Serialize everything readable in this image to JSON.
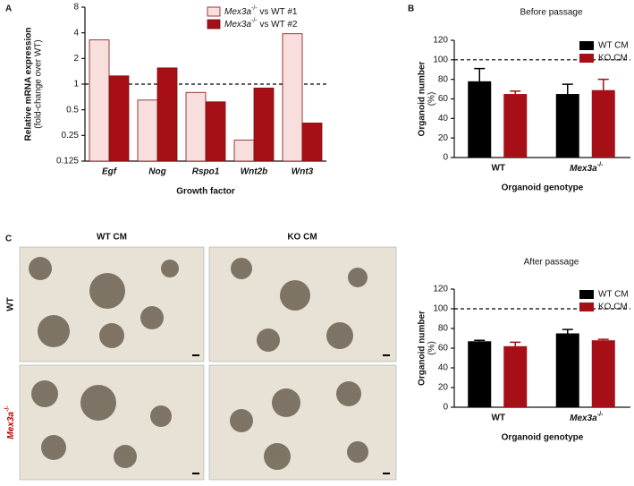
{
  "panels": [
    "A",
    "B",
    "C"
  ],
  "micrographs": {
    "columns": [
      "WT CM",
      "KO CM"
    ],
    "rows": [
      "WT",
      "Mex3a-/-"
    ]
  },
  "chart_data": [
    {
      "type": "bar",
      "categories": [
        "Egf",
        "Nog",
        "Rspo1",
        "Wnt2b",
        "Wnt3"
      ],
      "series": [
        {
          "name": "Mex3a-/- vs WT #1",
          "color": "#f9dede",
          "values": [
            3.3,
            0.65,
            0.8,
            0.22,
            3.9
          ]
        },
        {
          "name": "Mex3a-/- vs WT #2",
          "color": "#a50f15",
          "values": [
            1.25,
            1.55,
            0.62,
            0.9,
            0.35
          ]
        }
      ],
      "log_y": true,
      "ylim": [
        0.125,
        8
      ],
      "yticks": [
        0.125,
        0.25,
        0.5,
        1,
        2,
        4,
        8
      ],
      "reference_line": 1,
      "ylabel": [
        "Relative mRNA expression",
        "(fold-change over WT)"
      ],
      "xlabel": "Growth factor",
      "legend": "upper right"
    },
    {
      "type": "bar",
      "title": "Before passage",
      "categories": [
        "WT",
        "Mex3a-/-"
      ],
      "series": [
        {
          "name": "WT CM",
          "color": "#000000",
          "values": [
            78,
            65
          ],
          "errors": [
            13,
            10
          ]
        },
        {
          "name": "KO CM",
          "color": "#a50f15",
          "values": [
            65,
            69
          ],
          "errors": [
            3,
            11
          ]
        }
      ],
      "ylim": [
        0,
        120
      ],
      "yticks": [
        0,
        20,
        40,
        60,
        80,
        100,
        120
      ],
      "reference_line": 100,
      "ylabel": [
        "Organoid number",
        "(%)"
      ],
      "xlabel": "Organoid genotype",
      "legend": "upper right"
    },
    {
      "type": "bar",
      "title": "After passage",
      "categories": [
        "WT",
        "Mex3a-/-"
      ],
      "series": [
        {
          "name": "WT CM",
          "color": "#000000",
          "values": [
            67,
            75
          ],
          "errors": [
            1,
            4
          ]
        },
        {
          "name": "KO CM",
          "color": "#a50f15",
          "values": [
            62,
            68
          ],
          "errors": [
            4,
            1
          ]
        }
      ],
      "ylim": [
        0,
        120
      ],
      "yticks": [
        0,
        20,
        40,
        60,
        80,
        100,
        120
      ],
      "reference_line": 100,
      "ylabel": [
        "Organoid number",
        "(%)"
      ],
      "xlabel": "Organoid genotype",
      "legend": "upper right"
    }
  ]
}
